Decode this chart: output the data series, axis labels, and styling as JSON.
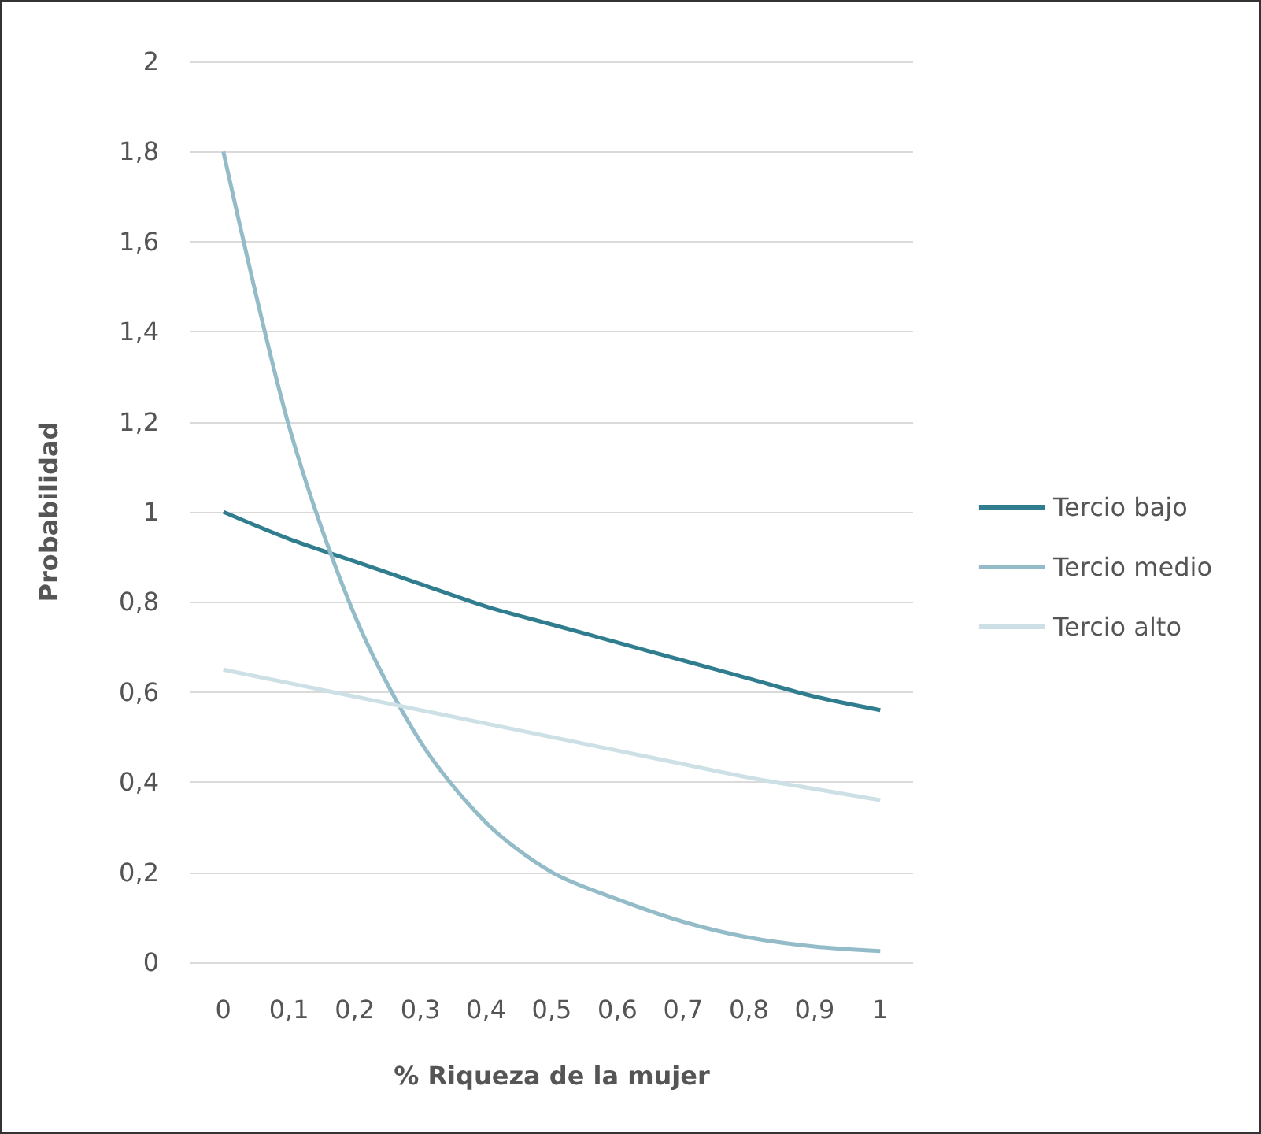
{
  "chart_data": {
    "type": "line",
    "xlabel": "% Riqueza de la mujer",
    "ylabel": "Probabilidad",
    "categories": [
      "0",
      "0,1",
      "0,2",
      "0,3",
      "0,4",
      "0,5",
      "0,6",
      "0,7",
      "0,8",
      "0,9",
      "1"
    ],
    "series": [
      {
        "name": "Tercio bajo",
        "color": "#2f7d8e",
        "values": [
          1.0,
          0.94,
          0.89,
          0.84,
          0.79,
          0.75,
          0.71,
          0.67,
          0.63,
          0.59,
          0.56
        ]
      },
      {
        "name": "Tercio medio",
        "color": "#93bcc8",
        "values": [
          1.8,
          1.19,
          0.77,
          0.49,
          0.31,
          0.2,
          0.14,
          0.09,
          0.055,
          0.035,
          0.025
        ]
      },
      {
        "name": "Tercio alto",
        "color": "#cde0e6",
        "values": [
          0.65,
          0.62,
          0.59,
          0.56,
          0.53,
          0.5,
          0.47,
          0.44,
          0.41,
          0.385,
          0.36
        ]
      }
    ],
    "ylim": [
      0,
      2
    ],
    "yticks": [
      0,
      {
        "value": 0.2,
        "label": "0,2"
      },
      {
        "value": 0.4,
        "label": "0,4"
      },
      {
        "value": 0.6,
        "label": "0,6"
      },
      {
        "value": 0.8,
        "label": "0,8"
      },
      1,
      {
        "value": 1.2,
        "label": "1,2"
      },
      {
        "value": 1.4,
        "label": "1,4"
      },
      {
        "value": 1.6,
        "label": "1,6"
      },
      {
        "value": 1.8,
        "label": "1,8"
      },
      2
    ],
    "grid": "y",
    "legend": "right",
    "marker": "none",
    "line_style": "solid"
  }
}
